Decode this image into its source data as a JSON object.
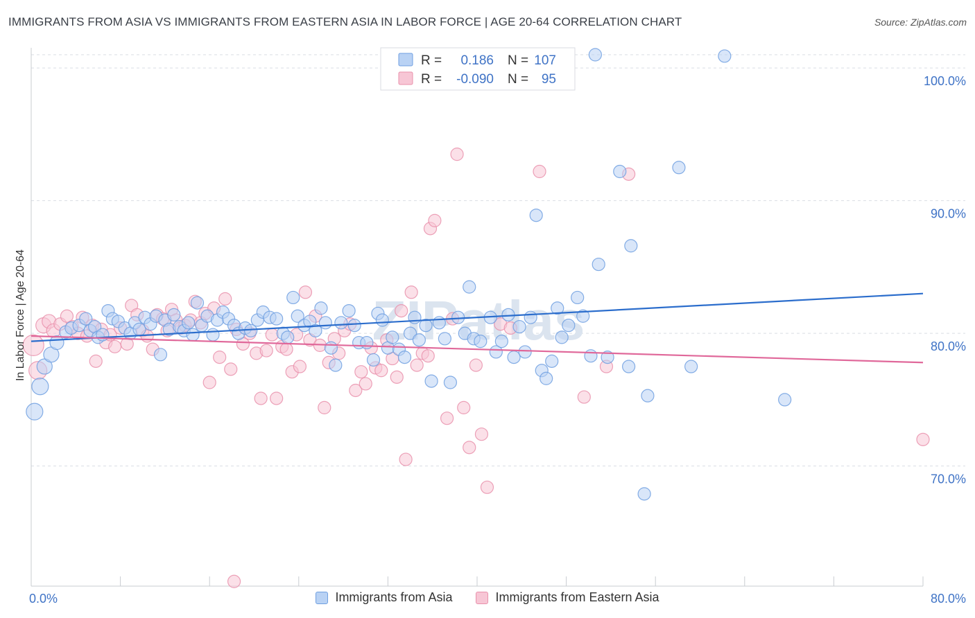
{
  "title": "IMMIGRANTS FROM ASIA VS IMMIGRANTS FROM EASTERN ASIA IN LABOR FORCE | AGE 20-64 CORRELATION CHART",
  "source": "Source: ZipAtlas.com",
  "watermark": "ZIPatlas",
  "colors": {
    "blue": "#6f9fe0",
    "blue_fill": "#b9d2f4",
    "blue_line": "#2b6dcc",
    "pink": "#e990ab",
    "pink_fill": "#f7c6d5",
    "pink_line": "#e0689a",
    "grid": "#d9dde3",
    "tick_text": "#3f73c6"
  },
  "legend_box": {
    "rows": [
      {
        "r_label": "R =",
        "r_value": "0.186",
        "n_label": "N =",
        "n_value": "107"
      },
      {
        "r_label": "R =",
        "r_value": "-0.090",
        "n_label": "N =",
        "n_value": "95"
      }
    ]
  },
  "bottom_legend": [
    {
      "label": "Immigrants from Asia"
    },
    {
      "label": "Immigrants from Eastern Asia"
    }
  ],
  "chart_data": {
    "type": "scatter",
    "title": "IMMIGRANTS FROM ASIA VS IMMIGRANTS FROM EASTERN ASIA IN LABOR FORCE | AGE 20-64 CORRELATION CHART",
    "xlabel": "",
    "ylabel": "In Labor Force | Age 20-64",
    "xlim": [
      0,
      80
    ],
    "ylim": [
      60.5,
      101.5
    ],
    "x_tick_labels": [
      {
        "value": 0,
        "label": "0.0%"
      },
      {
        "value": 80,
        "label": "80.0%"
      }
    ],
    "x_minor_ticks": [
      0,
      8,
      16,
      24,
      32,
      40,
      48,
      56,
      64,
      72,
      80
    ],
    "y_ticks": [
      {
        "value": 70,
        "label": "70.0%"
      },
      {
        "value": 80,
        "label": "80.0%"
      },
      {
        "value": 90,
        "label": "90.0%"
      },
      {
        "value": 100,
        "label": "100.0%"
      }
    ],
    "grid": true,
    "series": [
      {
        "name": "Immigrants from Asia",
        "r": 0.186,
        "n": 107,
        "trend": {
          "x": [
            0,
            80
          ],
          "y": [
            79.4,
            83.0
          ]
        },
        "points": [
          [
            0.3,
            74.1,
            12
          ],
          [
            0.8,
            76.0,
            12
          ],
          [
            1.2,
            77.5,
            11
          ],
          [
            1.8,
            78.4,
            11
          ],
          [
            2.3,
            79.3,
            10
          ],
          [
            3.1,
            80.1,
            9
          ],
          [
            3.6,
            80.4,
            9
          ],
          [
            4.3,
            80.6,
            9
          ],
          [
            4.9,
            81.1,
            9
          ],
          [
            5.3,
            80.2,
            9
          ],
          [
            5.7,
            80.5,
            9
          ],
          [
            6.0,
            79.7,
            9
          ],
          [
            6.4,
            79.9,
            9
          ],
          [
            6.9,
            81.7,
            9
          ],
          [
            7.3,
            81.1,
            9
          ],
          [
            7.8,
            80.9,
            9
          ],
          [
            8.4,
            80.4,
            9
          ],
          [
            8.9,
            80.0,
            9
          ],
          [
            9.3,
            80.8,
            9
          ],
          [
            9.7,
            80.3,
            9
          ],
          [
            10.2,
            81.2,
            9
          ],
          [
            10.7,
            80.7,
            9
          ],
          [
            11.2,
            81.3,
            9
          ],
          [
            11.6,
            78.4,
            9
          ],
          [
            12.0,
            81.0,
            9
          ],
          [
            12.4,
            80.3,
            9
          ],
          [
            12.8,
            81.4,
            9
          ],
          [
            13.3,
            80.5,
            9
          ],
          [
            13.7,
            80.2,
            9
          ],
          [
            14.1,
            80.8,
            9
          ],
          [
            14.5,
            79.9,
            9
          ],
          [
            14.9,
            82.3,
            9
          ],
          [
            15.3,
            80.6,
            9
          ],
          [
            15.8,
            81.3,
            9
          ],
          [
            16.3,
            79.9,
            9
          ],
          [
            16.7,
            81.0,
            9
          ],
          [
            17.2,
            81.6,
            9
          ],
          [
            17.7,
            81.1,
            9
          ],
          [
            18.2,
            80.6,
            9
          ],
          [
            18.6,
            80.0,
            9
          ],
          [
            19.2,
            80.4,
            9
          ],
          [
            19.7,
            80.2,
            9
          ],
          [
            20.3,
            81.0,
            9
          ],
          [
            20.8,
            81.6,
            9
          ],
          [
            21.4,
            81.2,
            9
          ],
          [
            22.0,
            81.1,
            9
          ],
          [
            22.6,
            80.0,
            9
          ],
          [
            23.0,
            79.7,
            9
          ],
          [
            23.5,
            82.7,
            9
          ],
          [
            23.9,
            81.3,
            9
          ],
          [
            24.5,
            80.6,
            9
          ],
          [
            25.0,
            80.9,
            9
          ],
          [
            25.5,
            80.2,
            9
          ],
          [
            26.0,
            81.9,
            9
          ],
          [
            26.4,
            80.8,
            9
          ],
          [
            26.9,
            78.9,
            9
          ],
          [
            27.3,
            77.6,
            9
          ],
          [
            27.8,
            80.8,
            9
          ],
          [
            28.5,
            81.7,
            9
          ],
          [
            29.0,
            80.6,
            9
          ],
          [
            29.4,
            79.3,
            9
          ],
          [
            30.1,
            79.3,
            9
          ],
          [
            30.7,
            78.0,
            9
          ],
          [
            31.1,
            81.5,
            9
          ],
          [
            31.5,
            81.0,
            9
          ],
          [
            32.0,
            78.9,
            9
          ],
          [
            32.4,
            79.7,
            9
          ],
          [
            33.0,
            78.8,
            9
          ],
          [
            33.5,
            78.2,
            9
          ],
          [
            34.0,
            80.0,
            9
          ],
          [
            34.4,
            81.2,
            9
          ],
          [
            34.8,
            79.5,
            9
          ],
          [
            35.4,
            80.6,
            9
          ],
          [
            35.9,
            76.4,
            9
          ],
          [
            36.6,
            80.8,
            9
          ],
          [
            37.1,
            79.6,
            9
          ],
          [
            37.6,
            76.3,
            9
          ],
          [
            38.3,
            81.2,
            9
          ],
          [
            38.9,
            80.0,
            9
          ],
          [
            39.3,
            83.5,
            9
          ],
          [
            39.7,
            79.6,
            9
          ],
          [
            40.3,
            79.4,
            9
          ],
          [
            41.2,
            81.2,
            9
          ],
          [
            41.7,
            78.6,
            9
          ],
          [
            42.2,
            79.4,
            9
          ],
          [
            42.8,
            81.4,
            9
          ],
          [
            43.3,
            78.2,
            9
          ],
          [
            43.8,
            80.5,
            9
          ],
          [
            44.3,
            78.6,
            9
          ],
          [
            44.8,
            81.2,
            9
          ],
          [
            45.3,
            88.9,
            9
          ],
          [
            45.8,
            77.2,
            9
          ],
          [
            46.2,
            76.6,
            9
          ],
          [
            46.7,
            77.9,
            9
          ],
          [
            47.2,
            81.9,
            9
          ],
          [
            47.6,
            79.7,
            9
          ],
          [
            48.2,
            80.6,
            9
          ],
          [
            49.0,
            82.7,
            9
          ],
          [
            49.5,
            81.3,
            9
          ],
          [
            50.2,
            78.3,
            9
          ],
          [
            50.6,
            101.0,
            9
          ],
          [
            50.9,
            85.2,
            9
          ],
          [
            51.7,
            78.2,
            9
          ],
          [
            52.8,
            92.2,
            9
          ],
          [
            53.6,
            77.5,
            9
          ],
          [
            53.8,
            86.6,
            9
          ],
          [
            55.3,
            75.3,
            9
          ],
          [
            55.0,
            67.9,
            9
          ],
          [
            58.1,
            92.5,
            9
          ],
          [
            59.2,
            77.5,
            9
          ],
          [
            62.2,
            100.9,
            9
          ],
          [
            67.6,
            75.0,
            9
          ]
        ]
      },
      {
        "name": "Immigrants from Eastern Asia",
        "r": -0.09,
        "n": 95,
        "trend": {
          "x": [
            0,
            80
          ],
          "y": [
            79.8,
            77.8
          ]
        },
        "points": [
          [
            0.2,
            79.1,
            15
          ],
          [
            0.6,
            77.2,
            13
          ],
          [
            1.1,
            80.6,
            11
          ],
          [
            1.6,
            80.9,
            10
          ],
          [
            2.0,
            80.2,
            10
          ],
          [
            2.6,
            80.7,
            9
          ],
          [
            3.2,
            81.3,
            9
          ],
          [
            3.7,
            80.5,
            9
          ],
          [
            4.2,
            80.0,
            9
          ],
          [
            4.6,
            81.2,
            9
          ],
          [
            5.0,
            79.8,
            9
          ],
          [
            5.5,
            80.6,
            9
          ],
          [
            5.8,
            77.9,
            9
          ],
          [
            6.3,
            80.3,
            9
          ],
          [
            6.7,
            79.3,
            9
          ],
          [
            7.1,
            79.9,
            9
          ],
          [
            7.5,
            79.0,
            9
          ],
          [
            8.0,
            80.4,
            9
          ],
          [
            8.6,
            79.2,
            9
          ],
          [
            9.0,
            82.1,
            9
          ],
          [
            9.5,
            81.4,
            9
          ],
          [
            10.0,
            80.2,
            9
          ],
          [
            10.4,
            79.8,
            9
          ],
          [
            10.9,
            78.8,
            9
          ],
          [
            11.3,
            81.4,
            9
          ],
          [
            11.8,
            81.1,
            9
          ],
          [
            12.2,
            80.2,
            9
          ],
          [
            12.6,
            81.8,
            9
          ],
          [
            13.0,
            81.0,
            9
          ],
          [
            13.4,
            80.4,
            9
          ],
          [
            13.8,
            80.6,
            9
          ],
          [
            14.3,
            81.0,
            9
          ],
          [
            14.7,
            82.4,
            9
          ],
          [
            15.2,
            80.8,
            9
          ],
          [
            15.6,
            81.5,
            9
          ],
          [
            16.0,
            76.3,
            9
          ],
          [
            16.4,
            81.9,
            9
          ],
          [
            16.9,
            78.2,
            9
          ],
          [
            17.4,
            82.6,
            9
          ],
          [
            17.9,
            77.3,
            9
          ],
          [
            18.4,
            80.3,
            9
          ],
          [
            19.0,
            79.2,
            9
          ],
          [
            19.6,
            80.0,
            9
          ],
          [
            20.2,
            78.5,
            9
          ],
          [
            20.6,
            75.1,
            9
          ],
          [
            21.1,
            78.7,
            9
          ],
          [
            21.6,
            79.9,
            9
          ],
          [
            22.0,
            75.1,
            9
          ],
          [
            22.5,
            79.0,
            9
          ],
          [
            22.9,
            78.8,
            9
          ],
          [
            23.4,
            77.1,
            9
          ],
          [
            23.8,
            79.9,
            9
          ],
          [
            24.1,
            77.5,
            9
          ],
          [
            24.6,
            83.1,
            9
          ],
          [
            25.0,
            79.5,
            9
          ],
          [
            25.5,
            81.3,
            9
          ],
          [
            25.9,
            79.1,
            9
          ],
          [
            26.3,
            74.4,
            9
          ],
          [
            26.7,
            77.8,
            9
          ],
          [
            27.2,
            79.6,
            9
          ],
          [
            27.6,
            78.5,
            9
          ],
          [
            28.1,
            80.2,
            9
          ],
          [
            28.6,
            80.7,
            9
          ],
          [
            29.1,
            75.7,
            9
          ],
          [
            29.6,
            77.1,
            9
          ],
          [
            30.0,
            76.2,
            9
          ],
          [
            30.5,
            78.9,
            9
          ],
          [
            30.9,
            77.4,
            9
          ],
          [
            31.4,
            77.2,
            9
          ],
          [
            31.9,
            79.5,
            9
          ],
          [
            32.4,
            78.1,
            9
          ],
          [
            32.8,
            76.7,
            9
          ],
          [
            33.2,
            81.7,
            9
          ],
          [
            33.6,
            70.5,
            9
          ],
          [
            34.1,
            83.1,
            9
          ],
          [
            34.6,
            77.6,
            9
          ],
          [
            35.1,
            78.5,
            9
          ],
          [
            35.6,
            78.3,
            9
          ],
          [
            35.8,
            87.9,
            9
          ],
          [
            36.2,
            88.5,
            9
          ],
          [
            37.3,
            73.6,
            9
          ],
          [
            37.8,
            81.1,
            9
          ],
          [
            38.2,
            93.5,
            9
          ],
          [
            38.8,
            74.4,
            9
          ],
          [
            39.3,
            71.4,
            9
          ],
          [
            39.9,
            77.6,
            9
          ],
          [
            40.4,
            72.4,
            9
          ],
          [
            40.9,
            68.4,
            9
          ],
          [
            42.1,
            80.7,
            9
          ],
          [
            43.0,
            80.4,
            9
          ],
          [
            45.6,
            92.2,
            9
          ],
          [
            49.6,
            75.2,
            9
          ],
          [
            51.6,
            77.5,
            9
          ],
          [
            53.6,
            92.0,
            9
          ],
          [
            80.0,
            72.0,
            9
          ]
        ]
      }
    ],
    "extra_points": [
      {
        "series": "Immigrants from Eastern Asia",
        "point": [
          18.2,
          61.3,
          9
        ]
      }
    ]
  }
}
